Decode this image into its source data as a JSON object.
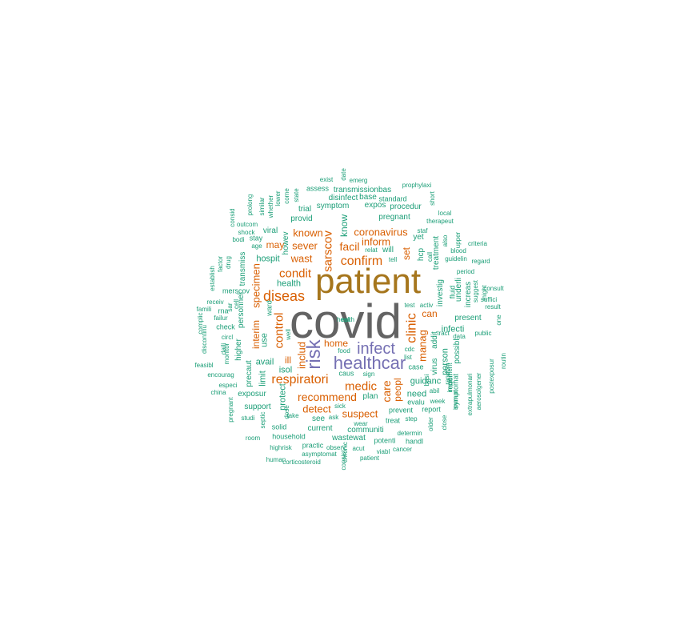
{
  "colors": {
    "tier1": "#636363",
    "tier2": "#a6761d",
    "tier3": "#7570b3",
    "tier4": "#d95f02",
    "tier5": "#1b9e77"
  },
  "words": [
    {
      "text": "covid",
      "tier": "tier1"
    },
    {
      "text": "patient",
      "tier": "tier2"
    },
    {
      "text": "healthcar",
      "tier": "tier3"
    },
    {
      "text": "infect",
      "tier": "tier3"
    },
    {
      "text": "risk",
      "tier": "tier3"
    },
    {
      "text": "diseas",
      "tier": "tier4"
    },
    {
      "text": "respiratori",
      "tier": "tier4"
    },
    {
      "text": "confirm",
      "tier": "tier4"
    },
    {
      "text": "medic",
      "tier": "tier4"
    },
    {
      "text": "clinic",
      "tier": "tier4"
    },
    {
      "text": "sarscov",
      "tier": "tier4"
    },
    {
      "text": "condit",
      "tier": "tier4"
    },
    {
      "text": "care",
      "tier": "tier4"
    },
    {
      "text": "control",
      "tier": "tier4"
    },
    {
      "text": "recommend",
      "tier": "tier4"
    },
    {
      "text": "detect",
      "tier": "tier4"
    },
    {
      "text": "suspect",
      "tier": "tier4"
    },
    {
      "text": "coronavirus",
      "tier": "tier4"
    },
    {
      "text": "facil",
      "tier": "tier4"
    },
    {
      "text": "inform",
      "tier": "tier4"
    },
    {
      "text": "known",
      "tier": "tier4"
    },
    {
      "text": "sever",
      "tier": "tier4"
    },
    {
      "text": "wast",
      "tier": "tier4"
    },
    {
      "text": "may",
      "tier": "tier4"
    },
    {
      "text": "manag",
      "tier": "tier4"
    },
    {
      "text": "home",
      "tier": "tier4"
    },
    {
      "text": "includ",
      "tier": "tier4"
    },
    {
      "text": "specimen",
      "tier": "tier4"
    },
    {
      "text": "interim",
      "tier": "tier4"
    },
    {
      "text": "ill",
      "tier": "tier4"
    },
    {
      "text": "set",
      "tier": "tier4"
    },
    {
      "text": "can",
      "tier": "tier4"
    },
    {
      "text": "peopl",
      "tier": "tier4"
    },
    {
      "text": "know",
      "tier": "tier5"
    },
    {
      "text": "hospit",
      "tier": "tier5"
    },
    {
      "text": "health",
      "tier": "tier5"
    },
    {
      "text": "avail",
      "tier": "tier5"
    },
    {
      "text": "isol",
      "tier": "tier5"
    },
    {
      "text": "use",
      "tier": "tier5"
    },
    {
      "text": "limit",
      "tier": "tier5"
    },
    {
      "text": "protect",
      "tier": "tier5"
    },
    {
      "text": "guidanc",
      "tier": "tier5"
    },
    {
      "text": "need",
      "tier": "tier5"
    },
    {
      "text": "person",
      "tier": "tier5"
    },
    {
      "text": "infecti",
      "tier": "tier5"
    },
    {
      "text": "present",
      "tier": "tier5"
    },
    {
      "text": "virus",
      "tier": "tier5"
    },
    {
      "text": "addit",
      "tier": "tier5"
    },
    {
      "text": "possibl",
      "tier": "tier5"
    },
    {
      "text": "investig",
      "tier": "tier5"
    },
    {
      "text": "treatment",
      "tier": "tier5"
    },
    {
      "text": "hcp",
      "tier": "tier5"
    },
    {
      "text": "yet",
      "tier": "tier5"
    },
    {
      "text": "will",
      "tier": "tier5"
    },
    {
      "text": "exposur",
      "tier": "tier5"
    },
    {
      "text": "support",
      "tier": "tier5"
    },
    {
      "text": "see",
      "tier": "tier5"
    },
    {
      "text": "current",
      "tier": "tier5"
    },
    {
      "text": "communiti",
      "tier": "tier5"
    },
    {
      "text": "wastewat",
      "tier": "tier5"
    },
    {
      "text": "plan",
      "tier": "tier5"
    },
    {
      "text": "prevent",
      "tier": "tier5"
    },
    {
      "text": "treat",
      "tier": "tier5"
    },
    {
      "text": "evalu",
      "tier": "tier5"
    },
    {
      "text": "report",
      "tier": "tier5"
    },
    {
      "text": "case",
      "tier": "tier5"
    },
    {
      "text": "household",
      "tier": "tier5"
    },
    {
      "text": "solid",
      "tier": "tier5"
    },
    {
      "text": "practic",
      "tier": "tier5"
    },
    {
      "text": "potenti",
      "tier": "tier5"
    },
    {
      "text": "handl",
      "tier": "tier5"
    },
    {
      "text": "determin",
      "tier": "tier5"
    },
    {
      "text": "highrisk",
      "tier": "tier5"
    },
    {
      "text": "asymptomat",
      "tier": "tier5"
    },
    {
      "text": "observ",
      "tier": "tier5"
    },
    {
      "text": "acut",
      "tier": "tier5"
    },
    {
      "text": "viabl",
      "tier": "tier5"
    },
    {
      "text": "cancer",
      "tier": "tier5"
    },
    {
      "text": "human",
      "tier": "tier5"
    },
    {
      "text": "corticosteroid",
      "tier": "tier5"
    },
    {
      "text": "patient",
      "tier": "tier5"
    },
    {
      "text": "room",
      "tier": "tier5"
    },
    {
      "text": "studi",
      "tier": "tier5"
    },
    {
      "text": "septic",
      "tier": "tier5"
    },
    {
      "text": "take",
      "tier": "tier5"
    },
    {
      "text": "pregnant",
      "tier": "tier5"
    },
    {
      "text": "china",
      "tier": "tier5"
    },
    {
      "text": "especi",
      "tier": "tier5"
    },
    {
      "text": "encourag",
      "tier": "tier5"
    },
    {
      "text": "feasibl",
      "tier": "tier5"
    },
    {
      "text": "precaut",
      "tier": "tier5"
    },
    {
      "text": "higher",
      "tier": "tier5"
    },
    {
      "text": "circl",
      "tier": "tier5"
    },
    {
      "text": "check",
      "tier": "tier5"
    },
    {
      "text": "failur",
      "tier": "tier5"
    },
    {
      "text": "rna",
      "tier": "tier5"
    },
    {
      "text": "receiv",
      "tier": "tier5"
    },
    {
      "text": "merscov",
      "tier": "tier5"
    },
    {
      "text": "personnel",
      "tier": "tier5"
    },
    {
      "text": "transmiss",
      "tier": "tier5"
    },
    {
      "text": "viral",
      "tier": "tier5"
    },
    {
      "text": "stay",
      "tier": "tier5"
    },
    {
      "text": "provid",
      "tier": "tier5"
    },
    {
      "text": "trial",
      "tier": "tier5"
    },
    {
      "text": "symptom",
      "tier": "tier5"
    },
    {
      "text": "expos",
      "tier": "tier5"
    },
    {
      "text": "procedur",
      "tier": "tier5"
    },
    {
      "text": "pregnant",
      "tier": "tier5"
    },
    {
      "text": "disinfect",
      "tier": "tier5"
    },
    {
      "text": "base",
      "tier": "tier5"
    },
    {
      "text": "standard",
      "tier": "tier5"
    },
    {
      "text": "transmissionbas",
      "tier": "tier5"
    },
    {
      "text": "assess",
      "tier": "tier5"
    },
    {
      "text": "exist",
      "tier": "tier5"
    },
    {
      "text": "emerg",
      "tier": "tier5"
    },
    {
      "text": "prophylaxi",
      "tier": "tier5"
    },
    {
      "text": "local",
      "tier": "tier5"
    },
    {
      "text": "therapeut",
      "tier": "tier5"
    },
    {
      "text": "staf",
      "tier": "tier5"
    },
    {
      "text": "criteria",
      "tier": "tier5"
    },
    {
      "text": "blood",
      "tier": "tier5"
    },
    {
      "text": "guidelin",
      "tier": "tier5"
    },
    {
      "text": "regard",
      "tier": "tier5"
    },
    {
      "text": "period",
      "tier": "tier5"
    },
    {
      "text": "consult",
      "tier": "tier5"
    },
    {
      "text": "suffici",
      "tier": "tier5"
    },
    {
      "text": "result",
      "tier": "tier5"
    },
    {
      "text": "public",
      "tier": "tier5"
    },
    {
      "text": "data",
      "tier": "tier5"
    },
    {
      "text": "abil",
      "tier": "tier5"
    },
    {
      "text": "week",
      "tier": "tier5"
    },
    {
      "text": "step",
      "tier": "tier5"
    },
    {
      "text": "test",
      "tier": "tier5"
    },
    {
      "text": "activ",
      "tier": "tier5"
    },
    {
      "text": "list",
      "tier": "tier5"
    },
    {
      "text": "cdc",
      "tier": "tier5"
    },
    {
      "text": "food",
      "tier": "tier5"
    },
    {
      "text": "caus",
      "tier": "tier5"
    },
    {
      "text": "sign",
      "tier": "tier5"
    },
    {
      "text": "sick",
      "tier": "tier5"
    },
    {
      "text": "ask",
      "tier": "tier5"
    },
    {
      "text": "wear",
      "tier": "tier5"
    },
    {
      "text": "relat",
      "tier": "tier5"
    },
    {
      "text": "tell",
      "tier": "tier5"
    },
    {
      "text": "outcom",
      "tier": "tier5"
    },
    {
      "text": "bodi",
      "tier": "tier5"
    },
    {
      "text": "age",
      "tier": "tier5"
    },
    {
      "text": "shock",
      "tier": "tier5"
    },
    {
      "text": "consid",
      "tier": "tier5"
    },
    {
      "text": "complic",
      "tier": "tier5"
    },
    {
      "text": "famili",
      "tier": "tier5"
    },
    {
      "text": "discontinu",
      "tier": "tier5"
    },
    {
      "text": "establish",
      "tier": "tier5"
    },
    {
      "text": "factor",
      "tier": "tier5"
    },
    {
      "text": "drug",
      "tier": "tier5"
    },
    {
      "text": "prolong",
      "tier": "tier5"
    },
    {
      "text": "similar",
      "tier": "tier5"
    },
    {
      "text": "whether",
      "tier": "tier5"
    },
    {
      "text": "lower",
      "tier": "tier5"
    },
    {
      "text": "come",
      "tier": "tier5"
    },
    {
      "text": "state",
      "tier": "tier5"
    },
    {
      "text": "date",
      "tier": "tier5"
    },
    {
      "text": "short",
      "tier": "tier5"
    },
    {
      "text": "howev",
      "tier": "tier5"
    },
    {
      "text": "also",
      "tier": "tier5"
    },
    {
      "text": "upper",
      "tier": "tier5"
    },
    {
      "text": "call",
      "tier": "tier5"
    },
    {
      "text": "fluid",
      "tier": "tier5"
    },
    {
      "text": "underli",
      "tier": "tier5"
    },
    {
      "text": "increas",
      "tier": "tier5"
    },
    {
      "text": "suggest",
      "tier": "tier5"
    },
    {
      "text": "might",
      "tier": "tier5"
    },
    {
      "text": "one",
      "tier": "tier5"
    },
    {
      "text": "routin",
      "tier": "tier5"
    },
    {
      "text": "postexposur",
      "tier": "tier5"
    },
    {
      "text": "aerosolgener",
      "tier": "tier5"
    },
    {
      "text": "extrapulmonari",
      "tier": "tier5"
    },
    {
      "text": "requir",
      "tier": "tier5"
    },
    {
      "text": "symptomat",
      "tier": "tier5"
    },
    {
      "text": "implement",
      "tier": "tier5"
    },
    {
      "text": "immun",
      "tier": "tier5"
    },
    {
      "text": "close",
      "tier": "tier5"
    },
    {
      "text": "older",
      "tier": "tier5"
    },
    {
      "text": "chronic",
      "tier": "tier5"
    },
    {
      "text": "random",
      "tier": "tier5"
    },
    {
      "text": "sar",
      "tier": "tier5"
    },
    {
      "text": "cell",
      "tier": "tier5"
    },
    {
      "text": "monitor",
      "tier": "tier5"
    },
    {
      "text": "daili",
      "tier": "tier5"
    },
    {
      "text": "well",
      "tier": "tier5"
    },
    {
      "text": "consist",
      "tier": "tier5"
    },
    {
      "text": "basi",
      "tier": "tier5"
    },
    {
      "text": "ward",
      "tier": "tier5"
    },
    {
      "text": "dose",
      "tier": "tier5"
    },
    {
      "text": "tract",
      "tier": "tier5"
    },
    {
      "text": "epi",
      "tier": "tier5"
    },
    {
      "text": "health",
      "tier": "tier5"
    }
  ]
}
